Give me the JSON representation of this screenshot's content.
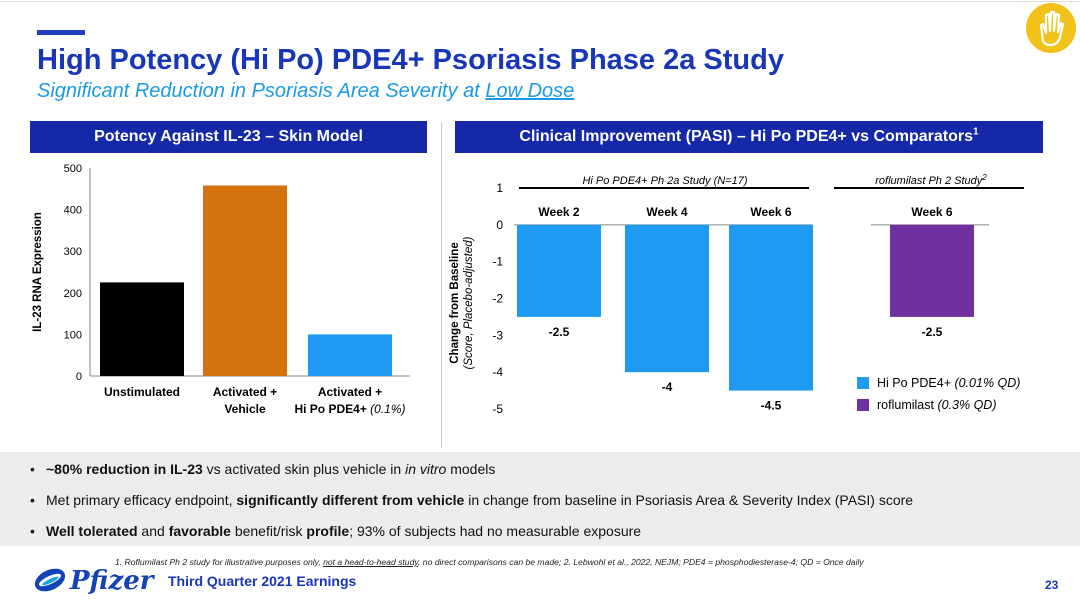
{
  "slide": {
    "title": "High Potency (Hi Po) PDE4+ Psoriasis Phase 2a Study",
    "subtitle_prefix": "Significant Reduction in Psoriasis Area Severity at ",
    "subtitle_underlined": "Low Dose",
    "page_number": "23",
    "footer": "Third Quarter 2021 Earnings",
    "logo_word": "Pfizer"
  },
  "left_panel": {
    "header": "Potency Against IL-23 – Skin Model"
  },
  "right_panel": {
    "header": "Clinical Improvement (PASI) – Hi Po PDE4+ vs Comparators",
    "header_sup": "1",
    "group1_label": "Hi Po PDE4+ Ph 2a Study (N=17)",
    "group2_label": "roflumilast Ph 2 Study",
    "group2_sup": "2"
  },
  "bullets": [
    {
      "parts": [
        {
          "t": "~80% reduction in IL-23",
          "b": true
        },
        {
          "t": " vs activated skin plus vehicle in "
        },
        {
          "t": "in vitro",
          "i": true
        },
        {
          "t": " models"
        }
      ]
    },
    {
      "parts": [
        {
          "t": "Met primary efficacy endpoint, "
        },
        {
          "t": "significantly different from vehicle",
          "b": true
        },
        {
          "t": " in change from baseline in Psoriasis Area & Severity Index (PASI) score"
        }
      ]
    },
    {
      "parts": [
        {
          "t": "Well tolerated",
          "b": true
        },
        {
          "t": " and "
        },
        {
          "t": "favorable",
          "b": true
        },
        {
          "t": " benefit/risk "
        },
        {
          "t": "profile",
          "b": true
        },
        {
          "t": "; 93% of subjects had no measurable exposure"
        }
      ]
    }
  ],
  "footnote_parts": [
    {
      "t": "1. Roflumilast Ph 2 study for illustrative purposes only, "
    },
    {
      "t": "not a head-to-head study",
      "u": true
    },
    {
      "t": ", no direct comparisons can be made; 2. Lebwohl et al., 2022, NEJM; PDE4 = phosphodiesterase-4; QD = Once daily"
    }
  ],
  "chart_data": [
    {
      "type": "bar",
      "title": "Potency Against IL-23 – Skin Model",
      "ylabel": "IL-23 RNA Expression",
      "xlabel": "",
      "ylim": [
        0,
        500
      ],
      "yticks": [
        0,
        100,
        200,
        300,
        400,
        500
      ],
      "grid": false,
      "categories": [
        {
          "line1": "Unstimulated",
          "line2": ""
        },
        {
          "line1": "Activated +",
          "line2": "Vehicle"
        },
        {
          "line1": "Activated +",
          "line2": "Hi Po PDE4+",
          "line2_suffix": " (0.1%)"
        }
      ],
      "values": [
        225,
        458,
        100
      ],
      "colors": [
        "#000000",
        "#d4720f",
        "#1e9af2"
      ]
    },
    {
      "type": "bar",
      "title": "Clinical Improvement (PASI) – Hi Po PDE4+ vs Comparators",
      "ylabel": "Change from Baseline",
      "ylabel2": "(Score, Placebo-adjusted)",
      "ylim": [
        -5,
        1
      ],
      "yticks": [
        1,
        0,
        -1,
        -2,
        -3,
        -4,
        -5
      ],
      "grid": false,
      "legend_position": "bottom-right",
      "categories": [
        "Week 2",
        "Week 4",
        "Week 6",
        "Week 6"
      ],
      "values": [
        -2.5,
        -4,
        -4.5,
        -2.5
      ],
      "value_labels": [
        "-2.5",
        "-4",
        "-4.5",
        "-2.5"
      ],
      "series": [
        {
          "name": "Hi Po PDE4+",
          "name_suffix": " (0.01% QD)",
          "color": "#1e9af2",
          "bars": [
            0,
            1,
            2
          ]
        },
        {
          "name": "roflumilast",
          "name_suffix": " (0.3% QD)",
          "color": "#7030a0",
          "bars": [
            3
          ]
        }
      ]
    }
  ]
}
